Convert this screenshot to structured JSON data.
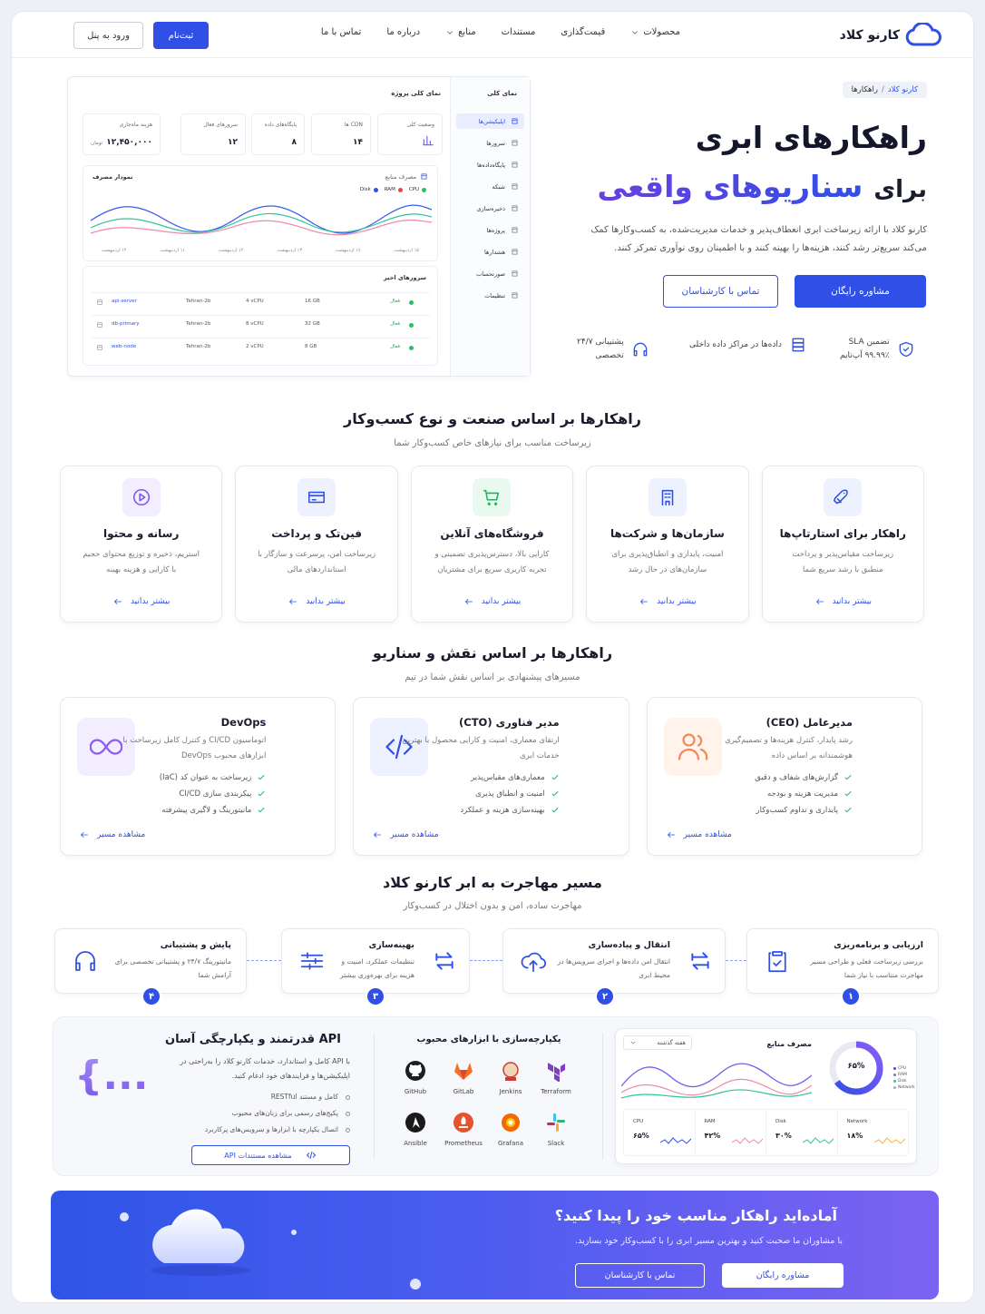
{
  "nav": {
    "brand": "کارنو کلاد",
    "links": [
      "محصولات",
      "قیمت‌گذاری",
      "مستندات",
      "منابع",
      "درباره ما",
      "تماس با ما"
    ],
    "signup": "ثبت‌نام",
    "login": "ورود به پنل"
  },
  "hero": {
    "breadcrumb": [
      "کارنو کلاد",
      "راهکارها"
    ],
    "breadcrumb_separator": "/",
    "title": "راهکارهای ابری",
    "title_prefix": "برای",
    "title_highlight": "سناریوهای واقعی",
    "description": "کارنو کلاد با ارائه زیرساخت ابری انعطاف‌پذیر و خدمات مدیریت‌شده، به کسب‌وکارها کمک می‌کند سریع‌تر رشد کنند، هزینه‌ها را بهینه کنند و با اطمینان روی نوآوری تمرکز کنند.",
    "primary_button": "مشاوره رایگان",
    "secondary_button": "تماس با کارشناسان",
    "features": [
      {
        "title": "تضمین SLA",
        "subtitle": "۹۹.۹۹٪ آپ‌تایم"
      },
      {
        "title": "داده‌ها در مراکز داده داخلی"
      },
      {
        "title": "پشتیبانی ۲۴/۷",
        "subtitle": "تخصصی"
      }
    ]
  },
  "dashboard": {
    "sidebar_title": "نمای کلی",
    "sidebar_items": [
      "اپلیکیشن‌ها",
      "سرورها",
      "پایگاه‌داده‌ها",
      "شبکه",
      "ذخیره‌سازی",
      "پروژه‌ها",
      "هشدارها",
      "صورتحساب",
      "تنظیمات"
    ],
    "title": "نمای کلی پروژه",
    "stats": [
      {
        "label": "وضعیت کلی"
      },
      {
        "label": "CDN ها",
        "value": "۱۴"
      },
      {
        "label": "پایگاه‌های داده",
        "value": "۸"
      },
      {
        "label": "سرورهای فعال",
        "value": "۱۲"
      },
      {
        "label": "هزینه ماه‌جاری",
        "value": "۱۲,۴۵۰,۰۰۰",
        "unit": "تومان"
      }
    ],
    "chart": {
      "title": "نمودار مصرف",
      "subtitle": "مصرف منابع",
      "legend": [
        "CPU",
        "RAM",
        "Disk"
      ],
      "dates": [
        "۱۵ اردیبهشت",
        "۱۶ اردیبهشت",
        "۱۳ اردیبهشت",
        "۱۲ اردیبهشت",
        "۱۱ اردیبهشت",
        "۱۴ اردیبهشت"
      ]
    },
    "table": {
      "title": "سرورهای اخیر",
      "rows": [
        [
          "api-server",
          "Tehran-2b",
          "4 vCPU",
          "16 GB",
          "فعال"
        ],
        [
          "db-primary",
          "Tehran-2b",
          "8 vCPU",
          "32 GB",
          "فعال"
        ],
        [
          "web-node",
          "Tehran-2b",
          "2 vCPU",
          "8 GB",
          "فعال"
        ]
      ]
    }
  },
  "industries": {
    "title": "راهکارها بر اساس صنعت و نوع کسب‌وکار",
    "subtitle": "زیرساخت مناسب برای نیازهای خاص کسب‌وکار شما",
    "link": "بیشتر بدانید",
    "cards": [
      {
        "title": "راهکار برای استارتاپ‌ها",
        "description": "زیرساخت مقیاس‌پذیر و پرداخت منطبق با رشد سریع شما"
      },
      {
        "title": "سازمان‌ها و شرکت‌ها",
        "description": "امنیت، پایداری و انطباق‌پذیری برای سازمان‌های در حال رشد"
      },
      {
        "title": "فروشگاه‌های آنلاین",
        "description": "کارایی بالا، دسترس‌پذیری تضمینی و تجربه کاربری سریع برای مشتریان"
      },
      {
        "title": "فین‌تک و پرداخت",
        "description": "زیرساخت امن، پرسرعت و سازگار با استانداردهای مالی"
      },
      {
        "title": "رسانه و محتوا",
        "description": "استریم، ذخیره و توزیع محتوای حجیم با کارایی و هزینه بهینه"
      }
    ]
  },
  "roles": {
    "title": "راهکارها بر اساس نقش و سناریو",
    "subtitle": "مسیرهای پیشنهادی بر اساس نقش شما در تیم",
    "link": "مشاهده مسیر",
    "cards": [
      {
        "title": "مدیرعامل (CEO)",
        "description": "رشد پایدار، کنترل هزینه‌ها و تصمیم‌گیری هوشمندانه بر اساس داده",
        "points": [
          "گزارش‌های شفاف و دقیق",
          "مدیریت هزینه و بودجه",
          "پایداری و تداوم کسب‌وکار"
        ]
      },
      {
        "title": "مدیر فناوری (CTO)",
        "description": "ارتقای معماری، امنیت و کارایی محصول با بهترین خدمات ابری",
        "points": [
          "معماری‌های مقیاس‌پذیر",
          "امنیت و انطباق پذیری",
          "بهینه‌سازی هزینه و عملکرد"
        ]
      },
      {
        "title": "DevOps",
        "description": "اتوماسیون CI/CD و کنترل کامل زیرساخت با ابزارهای محبوب DevOps",
        "points": [
          "زیرساخت به عنوان کد (IaC)",
          "پیکربندی سازی CI/CD",
          "مانیتورینگ و لاگیری پیشرفته"
        ]
      }
    ]
  },
  "migration": {
    "title": "مسیر مهاجرت به ابر کارنو کلاد",
    "subtitle": "مهاجرت ساده، امن و بدون اختلال در کسب‌وکار",
    "steps": [
      {
        "number": "۱",
        "title": "ارزیابی و برنامه‌ریزی",
        "description": "بررسی زیرساخت فعلی و طراحی مسیر مهاجرت متناسب با نیاز شما"
      },
      {
        "number": "۲",
        "title": "انتقال و پیاده‌سازی",
        "description": "انتقال امن داده‌ها و اجرای سرویس‌ها در محیط ابری"
      },
      {
        "number": "۳",
        "title": "بهینه‌سازی",
        "description": "تنظیمات عملکرد، امنیت و هزینه برای بهره‌وری بیشتر"
      },
      {
        "number": "۴",
        "title": "پایش و پشتیبانی",
        "description": "مانیتورینگ ۲۴/۷ و پشتیبانی تخصصی برای آرامش شما"
      }
    ]
  },
  "api": {
    "title": "API قدرتمند و یکپارچگی آسان",
    "description": "با API کامل و استاندارد، خدمات کارنو کلاد را به‌راحتی در اپلیکیشن‌ها و فرایندهای خود ادغام کنید.",
    "points": [
      "کامل و مستند RESTful",
      "پکیج‌های رسمی برای زبان‌های محبوب",
      "اتصال یکپارچه با ابزارها و سرویس‌های پرکاربرد"
    ],
    "button": "مشاهده مستندات API",
    "glyph": "{...}"
  },
  "integrations": {
    "title": "یکپارچه‌سازی با ابزارهای محبوب",
    "tools": [
      "GitHub",
      "GitLab",
      "Jenkins",
      "Terraform",
      "Ansible",
      "Prometheus",
      "Grafana",
      "Slack"
    ]
  },
  "resources": {
    "title": "مصرف منابع",
    "period": "هفته گذشته",
    "donut_value": 65,
    "donut_label": "۶۵%",
    "legend": [
      "CPU",
      "RAM",
      "Disk",
      "Network"
    ],
    "metrics": [
      {
        "name": "CPU",
        "label": "۶۵%"
      },
      {
        "name": "RAM",
        "label": "۴۲%"
      },
      {
        "name": "Disk",
        "label": "۳۰%"
      },
      {
        "name": "Network",
        "label": "۱۸%"
      }
    ]
  },
  "cta": {
    "title": "آماده‌اید راهکار مناسب خود را پیدا کنید؟",
    "description": "با مشاوران ما صحبت کنید و بهترین مسیر ابری را با کسب‌وکار خود بسازید.",
    "primary_button": "مشاوره رایگان",
    "secondary_button": "تماس با کارشناسان"
  }
}
